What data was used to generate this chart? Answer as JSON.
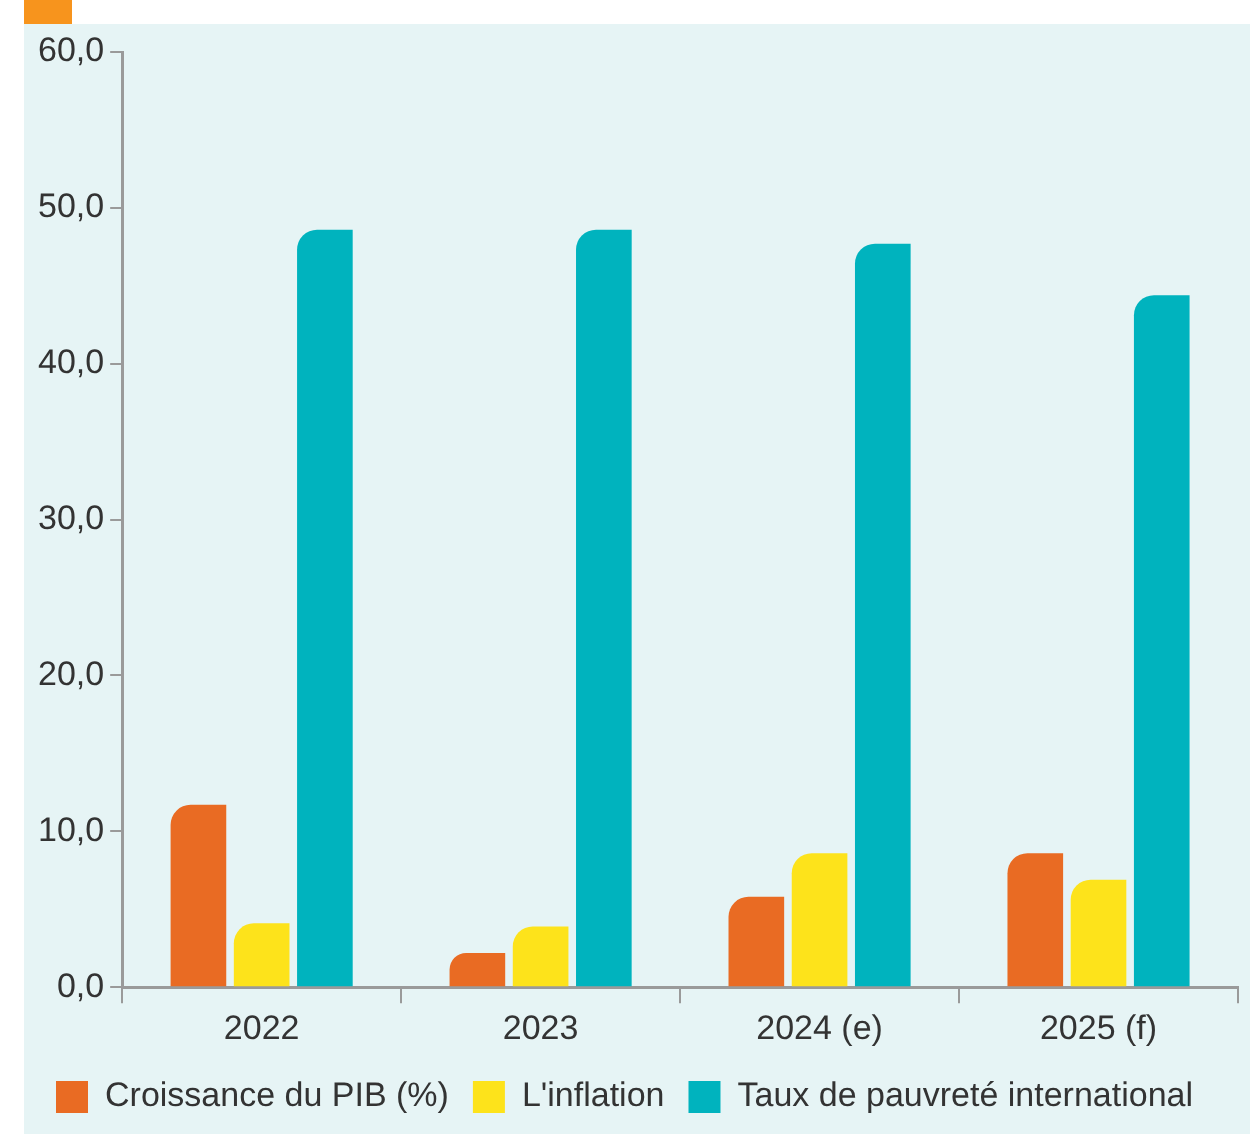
{
  "chart_data": {
    "type": "bar",
    "categories": [
      "2022",
      "2023",
      "2024 (e)",
      "2025 (f)"
    ],
    "series": [
      {
        "name": "Croissance du PIB (%)",
        "color": "#e96b23",
        "values": [
          11.7,
          2.2,
          5.8,
          8.6
        ]
      },
      {
        "name": "L'inflation",
        "color": "#fde31b",
        "values": [
          4.1,
          3.9,
          8.6,
          6.9
        ]
      },
      {
        "name": "Taux de pauvreté international",
        "color": "#00b3be",
        "values": [
          48.6,
          48.6,
          47.7,
          44.4
        ]
      }
    ],
    "ylim": [
      0,
      60
    ],
    "yticks": [
      {
        "value": 0,
        "label": "0,0"
      },
      {
        "value": 10,
        "label": "10,0"
      },
      {
        "value": 20,
        "label": "20,0"
      },
      {
        "value": 30,
        "label": "30,0"
      },
      {
        "value": 40,
        "label": "40,0"
      },
      {
        "value": 50,
        "label": "50,0"
      },
      {
        "value": 60,
        "label": "60,0"
      }
    ],
    "legend": "bottom"
  }
}
